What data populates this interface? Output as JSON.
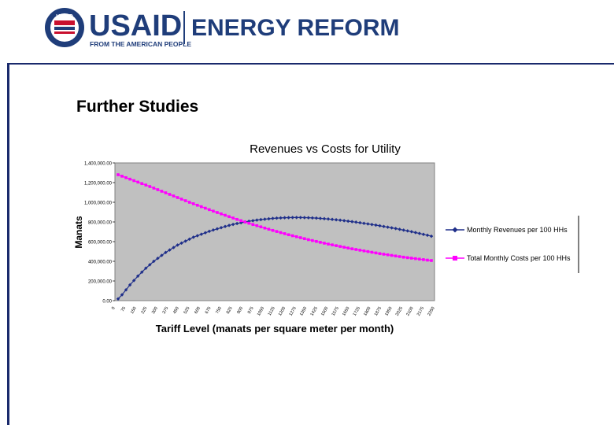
{
  "header": {
    "brand": "USAID",
    "tagline": "FROM THE AMERICAN PEOPLE",
    "program": "ENERGY REFORM",
    "seal_text": "USAID",
    "brand_color": "#1f3d7a",
    "accent_color": "#c8102e"
  },
  "slide": {
    "title": "Further Studies"
  },
  "chart_data": {
    "type": "line",
    "title": "Revenues vs Costs for Utility",
    "xlabel": "Tariff Level (manats per square meter per month)",
    "ylabel": "Manats",
    "ylim": [
      0,
      1400000
    ],
    "y_ticks": [
      0,
      200000,
      400000,
      600000,
      800000,
      1000000,
      1200000,
      1400000
    ],
    "y_tick_labels": [
      "0.00",
      "200,000.00",
      "400,000.00",
      "600,000.00",
      "800,000.00",
      "1,000,000.00",
      "1,200,000.00",
      "1,400,000.00"
    ],
    "x_tick_labels": [
      "0",
      "75",
      "150",
      "225",
      "300",
      "375",
      "450",
      "525",
      "600",
      "675",
      "750",
      "825",
      "900",
      "975",
      "1050",
      "1125",
      "1200",
      "1275",
      "1350",
      "1425",
      "1500",
      "1575",
      "1650",
      "1725",
      "1800",
      "1875",
      "1950",
      "2025",
      "2100",
      "2175",
      "2250"
    ],
    "grid": false,
    "plot_background": "#c0c0c0",
    "legend_position": "right",
    "series": [
      {
        "name": "Monthly Revenues per 100 HHs",
        "color": "#1f2f8a",
        "marker": "diamond",
        "values": [
          18000,
          60000,
          110000,
          160000,
          205000,
          250000,
          290000,
          330000,
          365000,
          400000,
          430000,
          460000,
          490000,
          515000,
          540000,
          565000,
          585000,
          605000,
          625000,
          645000,
          660000,
          675000,
          690000,
          705000,
          718000,
          730000,
          742000,
          754000,
          765000,
          775000,
          784000,
          792000,
          800000,
          807000,
          813000,
          819000,
          824000,
          828000,
          832000,
          836000,
          839000,
          841000,
          843000,
          844000,
          845000,
          845000,
          845000,
          844000,
          843000,
          841000,
          839000,
          836000,
          833000,
          830000,
          826000,
          822000,
          818000,
          813000,
          808000,
          803000,
          798000,
          792000,
          786000,
          780000,
          774000,
          768000,
          761000,
          754000,
          747000,
          740000,
          733000,
          725000,
          717000,
          709000,
          701000,
          692000,
          683000,
          674000,
          665000,
          655000
        ]
      },
      {
        "name": "Total Monthly Costs per 100 HHs",
        "color": "#ff00ff",
        "marker": "square",
        "values": [
          1280000,
          1265000,
          1250000,
          1235000,
          1220000,
          1205000,
          1190000,
          1175000,
          1160000,
          1144000,
          1128000,
          1112000,
          1096000,
          1080000,
          1064000,
          1048000,
          1032000,
          1016000,
          1000000,
          985000,
          970000,
          955000,
          940000,
          925000,
          910000,
          896000,
          882000,
          868000,
          854000,
          840000,
          826000,
          813000,
          800000,
          787000,
          774000,
          762000,
          750000,
          738000,
          726000,
          714000,
          703000,
          692000,
          681000,
          670000,
          660000,
          650000,
          640000,
          630000,
          620000,
          611000,
          602000,
          593000,
          584000,
          575000,
          567000,
          559000,
          551000,
          543000,
          535000,
          527000,
          520000,
          513000,
          506000,
          499000,
          492000,
          485000,
          478000,
          472000,
          466000,
          460000,
          454000,
          448000,
          442000,
          437000,
          432000,
          427000,
          422000,
          417000,
          412000,
          408000
        ]
      }
    ]
  }
}
